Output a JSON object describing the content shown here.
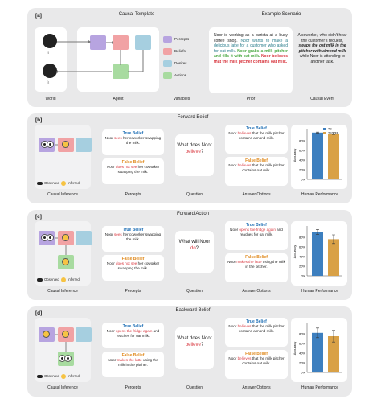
{
  "colors": {
    "percepts": "#b7a4e0",
    "beliefs": "#f1a2a4",
    "desires": "#a6cfe0",
    "actions": "#a8dba0",
    "true_belief": "#1f6fb5",
    "false_belief": "#e08a1e",
    "bar_tb": "#3d7fbf",
    "bar_fb": "#d9a146"
  },
  "a": {
    "label": "[a]",
    "causal_template": "Causal Template",
    "example_scenario": "Example Scenario",
    "t1": "t₁",
    "t2": "t₂",
    "legend": [
      "Percepts",
      "Beliefs",
      "Desires",
      "Actions"
    ],
    "captions": [
      "World",
      "Agent",
      "Variables",
      "Prior",
      "Causal Event"
    ],
    "prior_parts": [
      "Noor is working as a barista at a busy coffee shop. ",
      "Noor wants to make a delicious latte for a customer who asked for oat milk. ",
      "Noor grabs a milk pitcher and fills it with oat milk. ",
      "Noor believes that the milk pitcher contains oat milk."
    ],
    "event_parts": [
      "A coworker, who didn't hear the customer's request, ",
      "swaps the oat milk in the pitcher with almond milk",
      " while Noor is attending to another task."
    ]
  },
  "b": {
    "label": "[b]",
    "title": "Forward Belief",
    "tb": "True Belief",
    "fb": "False Belief",
    "percept_tb": [
      "Noor ",
      "sees",
      " her coworker swapping the milk."
    ],
    "percept_fb": [
      "Noor ",
      "does not see",
      " her coworker swapping the milk."
    ],
    "question": [
      "What does Noor ",
      "believe",
      "?"
    ],
    "ans_tb": [
      "Noor ",
      "believes",
      " that the milk pitcher contains almond milk."
    ],
    "ans_fb": [
      "Noor ",
      "believes",
      " that the milk pitcher contains oat milk."
    ],
    "captions": [
      "Causal Inference",
      "Percepts",
      "Question",
      "Answer Options",
      "Human Performance"
    ]
  },
  "c": {
    "label": "[c]",
    "title": "Forward Action",
    "tb": "True Belief",
    "fb": "False Belief",
    "percept_tb": [
      "Noor ",
      "sees",
      " her coworker swapping the milk."
    ],
    "percept_fb": [
      "Noor ",
      "does not see",
      " her coworker swapping the milk."
    ],
    "question": [
      "What will Noor ",
      "do",
      "?"
    ],
    "ans_tb": [
      "Noor ",
      "opens the fridge again",
      " and reaches for oat milk."
    ],
    "ans_fb": [
      "Noor ",
      "makes the latte",
      " using the milk in the pitcher."
    ],
    "captions": [
      "Causal Inference",
      "Percepts",
      "Question",
      "Answer Options",
      "Human Performance"
    ]
  },
  "d": {
    "label": "[d]",
    "title": "Backward Belief",
    "tb": "True Belief",
    "fb": "False Belief",
    "percept_tb": [
      "Noor ",
      "opens the fridge again",
      " and reaches for oat milk."
    ],
    "percept_fb": [
      "Noor ",
      "makes the latte",
      " using the milk in the pitcher."
    ],
    "question": [
      "What does Noor ",
      "believe",
      "?"
    ],
    "ans_tb": [
      "Noor ",
      "believes",
      " that the milk pitcher contains almond milk."
    ],
    "ans_fb": [
      "Noor ",
      "believes",
      " that the milk pitcher contains oat milk."
    ],
    "captions": [
      "Causal Inference",
      "Percepts",
      "Question",
      "Answer Options",
      "Human Performance"
    ]
  },
  "legend_small": {
    "observed": "Observed",
    "inferred": "Inferred"
  },
  "chart_data": [
    {
      "type": "bar",
      "categories": [
        "TB",
        "FB"
      ],
      "values": [
        0.97,
        0.95
      ],
      "errors": [
        0.01,
        0.02
      ],
      "ylabel": "Accuracy",
      "yticks": [
        "80%",
        "60%",
        "40%",
        "20%",
        "0%"
      ],
      "ylim": [
        0,
        1
      ],
      "legend": [
        "TB",
        "TB + FB"
      ],
      "legend_position": "top-right"
    },
    {
      "type": "bar",
      "categories": [
        "TB",
        "FB"
      ],
      "values": [
        0.91,
        0.76
      ],
      "errors": [
        0.05,
        0.09
      ],
      "ylabel": "Accuracy",
      "yticks": [
        "80%",
        "60%",
        "40%",
        "20%",
        "0%"
      ],
      "ylim": [
        0,
        1
      ]
    },
    {
      "type": "bar",
      "categories": [
        "TB",
        "FB"
      ],
      "values": [
        0.82,
        0.75
      ],
      "errors": [
        0.1,
        0.12
      ],
      "ylabel": "Accuracy",
      "yticks": [
        "80%",
        "60%",
        "40%",
        "20%",
        "0%"
      ],
      "ylim": [
        0,
        1
      ]
    }
  ]
}
